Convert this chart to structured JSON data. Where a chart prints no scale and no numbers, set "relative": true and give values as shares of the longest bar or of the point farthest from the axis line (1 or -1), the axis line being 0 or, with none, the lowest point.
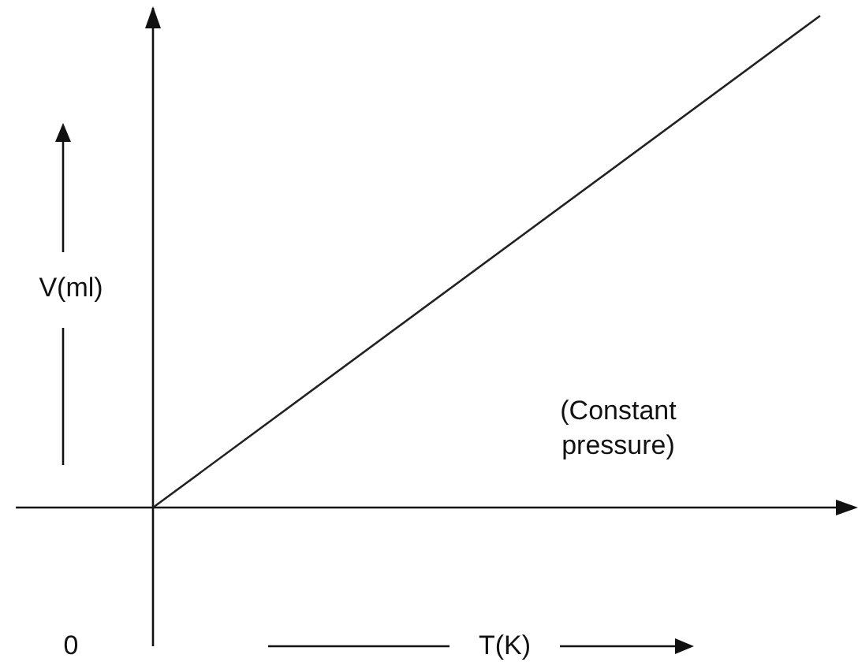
{
  "chart_data": {
    "type": "line",
    "relative": true,
    "xlabel": "T(K)",
    "ylabel": "V(ml)",
    "categories": [
      null,
      null
    ],
    "series": [
      {
        "color": "#222222",
        "values": [
          0,
          1
        ]
      }
    ],
    "annotations": [
      "0",
      "(Constant pressure)"
    ]
  }
}
